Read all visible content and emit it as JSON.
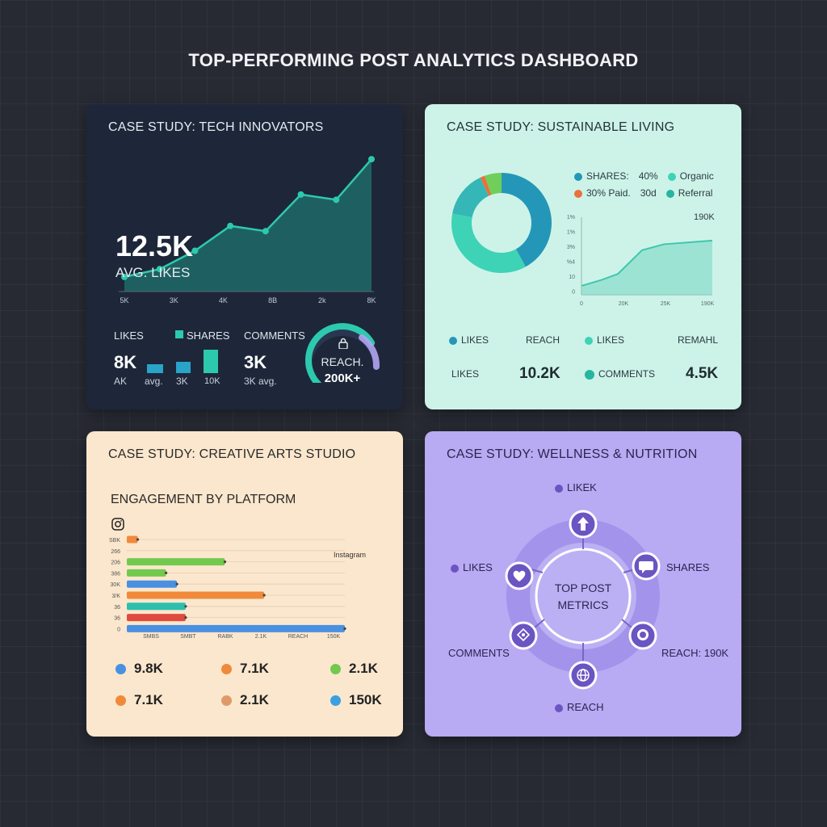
{
  "page": {
    "title": "TOP-PERFORMING POST ANALYTICS DASHBOARD"
  },
  "card1": {
    "title": "CASE STUDY: TECH INNOVATORS",
    "headline_value": "12.5K",
    "headline_label": "AVG. LIKES",
    "line_values": [
      0.05,
      0.11,
      0.25,
      0.44,
      0.4,
      0.68,
      0.64,
      0.95
    ],
    "x_ticks": [
      "5K",
      "3K",
      "4K",
      "8B",
      "2k",
      "8K"
    ],
    "colors": {
      "accent": "#2dc9ae",
      "area": "#1f6e6c",
      "bar": "#2aa3c9"
    },
    "likes": {
      "label": "LIKES",
      "value": "8K",
      "sub": "AK"
    },
    "shares": {
      "label": "SHARES",
      "bar_labels": [
        "avg.",
        "3K",
        "10K"
      ],
      "bar_levels": [
        0.35,
        0.45,
        0.9
      ]
    },
    "comments": {
      "label": "COMMENTS",
      "value": "3K",
      "sub": "3K avg."
    },
    "reach": {
      "label": "REACH.",
      "value": "200K+",
      "icon": "lock-icon",
      "gauge_level": 0.72
    }
  },
  "card2": {
    "title": "CASE STUDY: SUSTAINABLE LIVING",
    "donut": [
      {
        "share": 0.42,
        "color": "#2497b8"
      },
      {
        "share": 0.36,
        "color": "#3ed3b6"
      },
      {
        "share": 0.15,
        "color": "#34b7b6"
      },
      {
        "share": 0.015,
        "color": "#e8713c"
      },
      {
        "share": 0.055,
        "color": "#6fcf5a"
      }
    ],
    "legend": [
      {
        "text": "SHARES:",
        "color": "#2497b8"
      },
      {
        "text": "40%",
        "color": null
      },
      {
        "text": "Organic",
        "color": "#3ed3b6"
      },
      {
        "text": "30% Paid.",
        "color": "#e8713c"
      },
      {
        "text": "30d",
        "color": null
      },
      {
        "text": "Referral",
        "color": "#27b5a0"
      }
    ],
    "area_chart": {
      "y_ticks": [
        "1%",
        "1%",
        "3%",
        "%4",
        "10",
        "0"
      ],
      "x_ticks": [
        "0",
        "20K",
        "25K",
        "190K"
      ],
      "peak_label": "190K",
      "values": [
        0.12,
        0.2,
        0.28,
        0.6,
        0.68,
        0.73
      ]
    },
    "row1": [
      {
        "text": "LIKES",
        "color": "#2497b8"
      },
      {
        "text": "REACH",
        "color": null
      },
      {
        "text": "LIKES",
        "color": "#3ed3b6"
      },
      {
        "text": "REMAHL",
        "color": null
      }
    ],
    "row2": {
      "likes_label": "LIKES",
      "likes_value": "10.2K",
      "comments_label": "COMMENTS",
      "comments_value": "4.5K",
      "comments_color": "#27b5a0"
    }
  },
  "card3": {
    "title": "CASE STUDY: CREATIVE ARTS STUDIO",
    "subtitle": "ENGAGEMENT BY PLATFORM",
    "platform_icon": "instagram-icon",
    "platform_label": "Instagram",
    "chart_data": {
      "type": "bar",
      "orientation": "horizontal",
      "categories": [
        "SBK",
        "266",
        "206",
        "386",
        "30K",
        "3/K",
        "36",
        "36",
        "0"
      ],
      "values": [
        0.05,
        0,
        0.45,
        0.18,
        0.23,
        0.63,
        0.27,
        0.27,
        1.0
      ],
      "colors": [
        "#f08a3a",
        null,
        "#72c94e",
        "#72c94e",
        "#4a90e2",
        "#f08a3a",
        "#2cbfae",
        "#e04b3f",
        "#4a90e2"
      ],
      "x_ticks": [
        "SMBS",
        "SMBT",
        "RABK",
        "2.1K",
        "REACH",
        "150K"
      ]
    },
    "stats": [
      {
        "value": "9.8K",
        "color": "#4a90e2"
      },
      {
        "value": "7.1K",
        "color": "#f08a3a"
      },
      {
        "value": "2.1K",
        "color": "#72c94e"
      },
      {
        "value": "7.1K",
        "color": "#f08a3a"
      },
      {
        "value": "2.1K",
        "color": "#e09a6a"
      },
      {
        "value": "150K",
        "color": "#3aa0e0"
      }
    ]
  },
  "card4": {
    "title": "CASE STUDY: WELLNESS & NUTRITION",
    "center_line1": "TOP POST",
    "center_line2": "METRICS",
    "labels": {
      "top": "LIKEK",
      "left": "LIKES",
      "right_top": "SHARES",
      "left_bottom": "COMMENTS",
      "right_bottom": "REACH: 190K",
      "bottom": "REACH"
    },
    "nodes": [
      "arrow-up-icon",
      "chat-bubble-icon",
      "comment-icon",
      "globe-icon",
      "badge-icon",
      "heart-icon"
    ],
    "dot_color": "#6a55c2"
  }
}
